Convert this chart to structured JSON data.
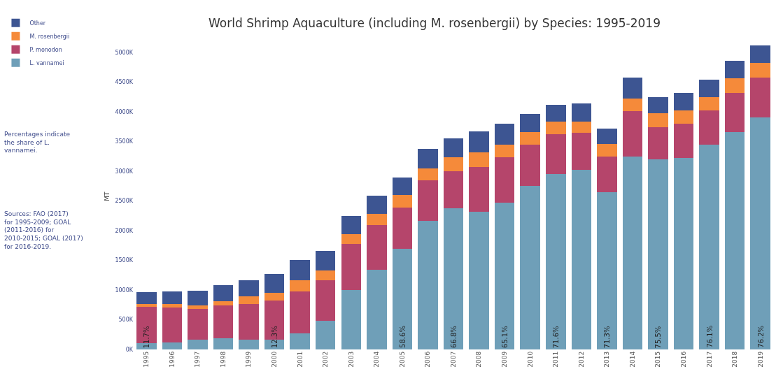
{
  "chart_data": {
    "type": "bar",
    "title": "World Shrimp Aquaculture (including M. rosenbergii) by Species: 1995-2019",
    "ylabel": "MT",
    "categories": [
      "1995",
      "1996",
      "1997",
      "1998",
      "1999",
      "2000",
      "2001",
      "2002",
      "2003",
      "2004",
      "2005",
      "2006",
      "2007",
      "2008",
      "2009",
      "2010",
      "2011",
      "2012",
      "2013",
      "2014",
      "2015",
      "2016",
      "2017",
      "2018",
      "2019"
    ],
    "stacked": true,
    "series": [
      {
        "name": "L. vannamei",
        "color": "#6f9fb8",
        "values": [
          110,
          120,
          170,
          190,
          170,
          160,
          270,
          480,
          1000,
          1340,
          1690,
          2160,
          2370,
          2320,
          2470,
          2750,
          2950,
          3020,
          2650,
          3240,
          3200,
          3220,
          3450,
          3660,
          3900
        ]
      },
      {
        "name": "P. monodon",
        "color": "#b5456b",
        "values": [
          610,
          590,
          510,
          550,
          600,
          660,
          710,
          680,
          770,
          750,
          700,
          690,
          630,
          750,
          760,
          700,
          670,
          620,
          600,
          770,
          540,
          580,
          570,
          660,
          670
        ]
      },
      {
        "name": "M. rosenbergii",
        "color": "#f58a3a",
        "values": [
          40,
          60,
          60,
          70,
          120,
          130,
          180,
          170,
          170,
          190,
          210,
          200,
          230,
          250,
          220,
          210,
          210,
          190,
          210,
          210,
          230,
          220,
          220,
          240,
          250
        ]
      },
      {
        "name": "Other",
        "color": "#3d5592",
        "values": [
          200,
          210,
          250,
          270,
          270,
          320,
          340,
          330,
          300,
          310,
          290,
          320,
          320,
          350,
          350,
          300,
          290,
          310,
          250,
          350,
          270,
          290,
          300,
          300,
          290
        ]
      }
    ],
    "ylim": [
      0,
      5150
    ],
    "yticks": [
      {
        "value": 0,
        "label": "0K"
      },
      {
        "value": 500,
        "label": "500K"
      },
      {
        "value": 1000,
        "label": "1000K"
      },
      {
        "value": 1500,
        "label": "1500K"
      },
      {
        "value": 2000,
        "label": "2000K"
      },
      {
        "value": 2500,
        "label": "2500K"
      },
      {
        "value": 3000,
        "label": "3000K"
      },
      {
        "value": 3500,
        "label": "3500K"
      },
      {
        "value": 4000,
        "label": "4000K"
      },
      {
        "value": 4500,
        "label": "4500K"
      },
      {
        "value": 5000,
        "label": "5000K"
      }
    ],
    "legend": "top left",
    "annotations": [
      "Percentages indicate the share of L. vannamei.",
      "Sources: FAO (2017) for 1995-2009; GOAL (2011-2016) for 2010-2015; GOAL (2017) for 2016-2019.",
      {
        "text": "11.7%",
        "x": "1995",
        "y": 0
      },
      {
        "text": "12.3%",
        "x": "2000",
        "y": 0
      },
      {
        "text": "58.6%",
        "x": "2005",
        "y": 0
      },
      {
        "text": "66.8%",
        "x": "2007",
        "y": 0
      },
      {
        "text": "65.1%",
        "x": "2009",
        "y": 0
      },
      {
        "text": "71.6%",
        "x": "2011",
        "y": 0
      },
      {
        "text": "71.3%",
        "x": "2013",
        "y": 0
      },
      {
        "text": "75.5%",
        "x": "2015",
        "y": 0
      },
      {
        "text": "76.1%",
        "x": "2017",
        "y": 0
      },
      {
        "text": "76.2%",
        "x": "2019",
        "y": 0
      }
    ]
  }
}
